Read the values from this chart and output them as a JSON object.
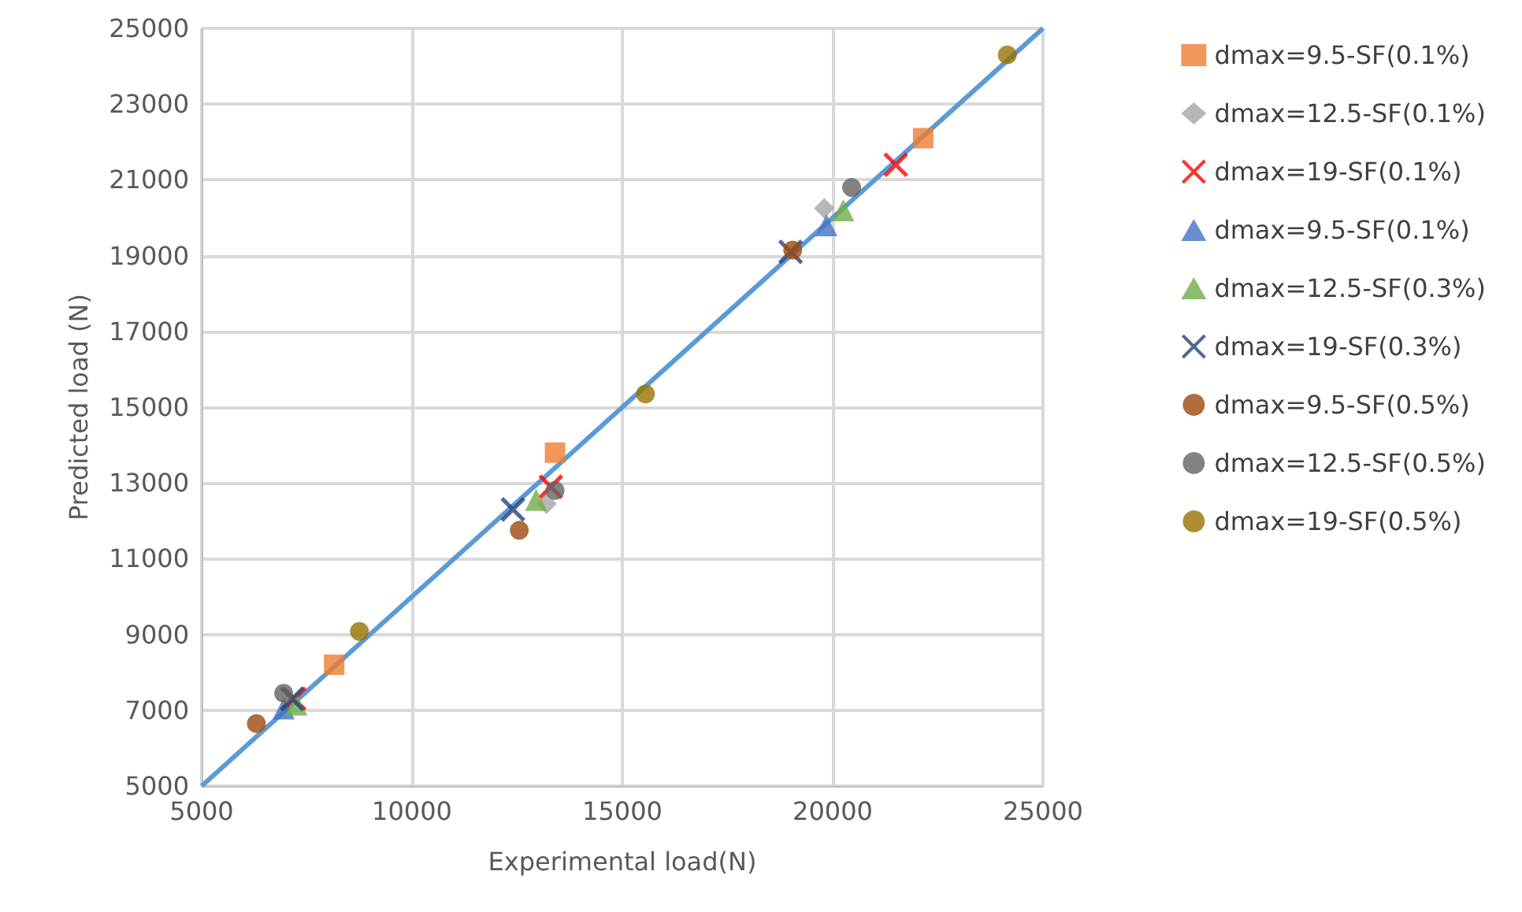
{
  "chart_data": {
    "type": "scatter",
    "xlabel": "Experimental load(N)",
    "ylabel": "Predicted load (N)",
    "xlim": [
      5000,
      25000
    ],
    "xticks": [
      5000,
      10000,
      15000,
      20000,
      25000
    ],
    "ylim": [
      5000,
      25000
    ],
    "yticks": [
      5000,
      7000,
      9000,
      11000,
      13000,
      15000,
      17000,
      19000,
      21000,
      23000,
      25000
    ],
    "grid": true,
    "legend": "right",
    "series": [
      {
        "name": "dmax=9.5-SF(0.1%)",
        "color": "#ed7d31",
        "marker": "square",
        "x": [
          8150,
          13400,
          22150
        ],
        "values": [
          8200,
          13800,
          22100
        ]
      },
      {
        "name": "dmax=12.5-SF(0.1%)",
        "color": "#a5a5a5",
        "marker": "diamond",
        "x": [
          null,
          13200,
          19800
        ],
        "values": [
          null,
          12450,
          20250
        ]
      },
      {
        "name": "dmax=19-SF(0.1%)",
        "color": "#ff0000",
        "marker": "cross",
        "x": [
          7200,
          13300,
          21500
        ],
        "values": [
          7300,
          12900,
          21400
        ]
      },
      {
        "name": "dmax=9.5-SF(0.1%)",
        "color": "#4472c4",
        "marker": "triangle",
        "x": [
          6950,
          null,
          19850
        ],
        "values": [
          7050,
          null,
          19800
        ]
      },
      {
        "name": "dmax=12.5-SF(0.3%)",
        "color": "#70ad47",
        "marker": "triangle",
        "x": [
          7250,
          12950,
          20250
        ],
        "values": [
          7150,
          12550,
          20200
        ]
      },
      {
        "name": "dmax=19-SF(0.3%)",
        "color": "#264478",
        "marker": "cross",
        "x": [
          7150,
          12400,
          19000
        ],
        "values": [
          7300,
          12300,
          19100
        ]
      },
      {
        "name": "dmax=9.5-SF(0.5%)",
        "color": "#9e480e",
        "marker": "circle",
        "x": [
          6300,
          12550,
          19050
        ],
        "values": [
          6650,
          11750,
          19150
        ]
      },
      {
        "name": "dmax=12.5-SF(0.5%)",
        "color": "#636363",
        "marker": "circle",
        "x": [
          6950,
          13400,
          20450
        ],
        "values": [
          7450,
          12800,
          20800
        ]
      },
      {
        "name": "dmax=19-SF(0.5%)",
        "color": "#997300",
        "marker": "circle",
        "x": [
          8750,
          15550,
          24150
        ],
        "values": [
          9080,
          15350,
          24300
        ]
      },
      {
        "type": "line",
        "color": "#5b9bd5",
        "marker": "none",
        "line_style": "solid",
        "x": [
          5000,
          25000
        ],
        "values": [
          5000,
          25000
        ]
      }
    ]
  }
}
